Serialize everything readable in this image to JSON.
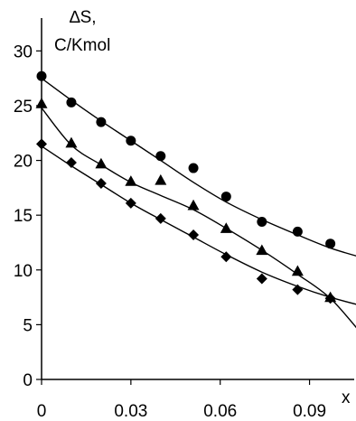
{
  "chart_data": {
    "type": "scatter",
    "ylabel_line1": "∆S,",
    "ylabel_line2": "C/Kmol",
    "xlabel": "x",
    "xlim": [
      0,
      0.105
    ],
    "ylim": [
      0,
      33
    ],
    "yticks": [
      0,
      5,
      10,
      15,
      20,
      25,
      30
    ],
    "xticks": [
      0,
      0.03,
      0.06,
      0.09
    ],
    "ytick_labels": [
      "0",
      "5",
      "10",
      "15",
      "20",
      "25",
      "30"
    ],
    "xtick_labels": [
      "0",
      "0.03",
      "0.06",
      "0.09"
    ],
    "grid": false,
    "series": [
      {
        "marker": "circle",
        "x": [
          0,
          0.01,
          0.02,
          0.03,
          0.04,
          0.051,
          0.062,
          0.074,
          0.086,
          0.097,
          0.108
        ],
        "y": [
          27.7,
          25.3,
          23.5,
          21.8,
          20.4,
          19.3,
          16.7,
          14.4,
          13.5,
          12.4,
          11.3
        ],
        "fit": [
          27.5,
          25.5,
          23.6,
          21.8,
          20.0,
          18.0,
          16.2,
          14.6,
          13.2,
          12.0,
          11.1
        ]
      },
      {
        "marker": "triangle",
        "x": [
          0,
          0.01,
          0.02,
          0.03,
          0.04,
          0.051,
          0.062,
          0.074,
          0.086,
          0.097,
          0.108
        ],
        "y": [
          25.2,
          21.6,
          19.7,
          18.1,
          18.2,
          15.9,
          13.8,
          11.8,
          9.9,
          7.5,
          4.0
        ],
        "fit": [
          24.8,
          21.4,
          19.6,
          18.0,
          16.8,
          15.5,
          13.8,
          11.8,
          9.6,
          7.4,
          4.0
        ]
      },
      {
        "marker": "diamond",
        "x": [
          0,
          0.01,
          0.02,
          0.03,
          0.04,
          0.051,
          0.062,
          0.074,
          0.086,
          0.097,
          0.108
        ],
        "y": [
          21.5,
          19.8,
          17.9,
          16.1,
          14.7,
          13.2,
          11.2,
          9.2,
          8.2,
          7.4,
          6.7
        ],
        "fit": [
          21.3,
          19.5,
          17.8,
          16.1,
          14.6,
          13.0,
          11.4,
          9.8,
          8.5,
          7.5,
          6.7
        ]
      }
    ]
  }
}
